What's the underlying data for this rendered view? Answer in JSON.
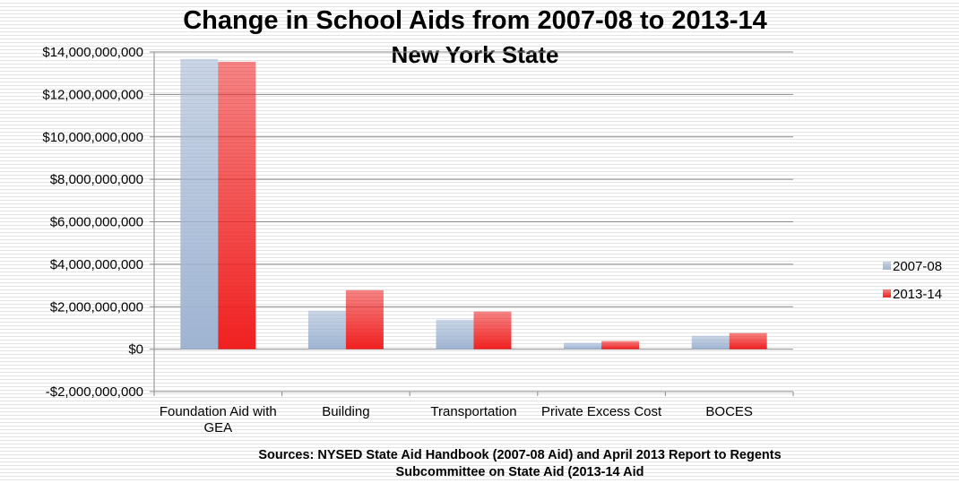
{
  "chart_data": {
    "type": "bar",
    "title": "Change in School Aids from 2007-08 to 2013-14",
    "subtitle": "New York State",
    "source": [
      "Sources:  NYSED State Aid Handbook (2007-08 Aid) and April 2013 Report to Regents",
      "Subcommittee on State Aid (2013-14 Aid"
    ],
    "categories": [
      "Foundation Aid with GEA",
      "Building",
      "Transportation",
      "Private Excess Cost",
      "BOCES"
    ],
    "series": [
      {
        "name": "2007-08",
        "color": "#9fb4d2",
        "values": [
          13670000000,
          1810000000,
          1390000000,
          300000000,
          630000000
        ]
      },
      {
        "name": "2013-14",
        "color": "#f02020",
        "values": [
          13540000000,
          2780000000,
          1770000000,
          380000000,
          760000000
        ]
      }
    ],
    "ylim": [
      -2000000000,
      14000000000
    ],
    "yticks": [
      {
        "value": -2000000000,
        "label": "-$2,000,000,000"
      },
      {
        "value": 0,
        "label": "$0"
      },
      {
        "value": 2000000000,
        "label": "$2,000,000,000"
      },
      {
        "value": 4000000000,
        "label": "$4,000,000,000"
      },
      {
        "value": 6000000000,
        "label": "$6,000,000,000"
      },
      {
        "value": 8000000000,
        "label": "$8,000,000,000"
      },
      {
        "value": 10000000000,
        "label": "$10,000,000,000"
      },
      {
        "value": 12000000000,
        "label": "$12,000,000,000"
      },
      {
        "value": 14000000000,
        "label": "$14,000,000,000"
      }
    ],
    "grid": true,
    "legend": "right"
  }
}
